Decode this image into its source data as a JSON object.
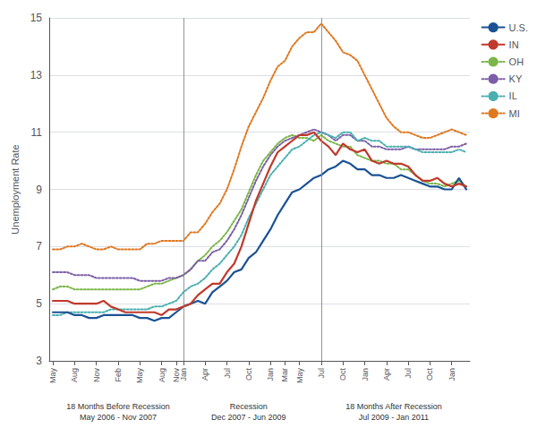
{
  "chart_data": {
    "type": "line",
    "ylabel": "Unemployment Rate",
    "ylim": [
      3,
      15
    ],
    "yticks": [
      3,
      5,
      7,
      9,
      11,
      13,
      15
    ],
    "grid": true,
    "legend": "right",
    "categories": [
      "May",
      null,
      null,
      "Aug",
      null,
      null,
      "Nov",
      null,
      null,
      "Feb",
      null,
      null,
      "May",
      null,
      null,
      "Aug",
      null,
      "Nov",
      "Jan",
      null,
      null,
      "Apr",
      null,
      null,
      "Jul",
      null,
      null,
      "Oct",
      null,
      null,
      "Jan",
      null,
      "Mar",
      null,
      "May",
      null,
      null,
      "Jul",
      null,
      null,
      "Oct",
      null,
      null,
      "Jan",
      null,
      null,
      "Apr",
      null,
      null,
      "Jul",
      null,
      null,
      "Oct",
      null,
      null,
      "Jan",
      null,
      null
    ],
    "series": [
      {
        "name": "U.S.",
        "color": "#1a5294",
        "line_style": "solid",
        "values": [
          4.7,
          4.7,
          4.7,
          4.6,
          4.6,
          4.5,
          4.5,
          4.6,
          4.6,
          4.6,
          4.6,
          4.6,
          4.5,
          4.5,
          4.4,
          4.5,
          4.5,
          4.7,
          4.9,
          5.0,
          5.1,
          5.0,
          5.4,
          5.6,
          5.8,
          6.1,
          6.2,
          6.6,
          6.8,
          7.2,
          7.6,
          8.1,
          8.5,
          8.9,
          9.0,
          9.2,
          9.4,
          9.5,
          9.7,
          9.8,
          10.0,
          9.9,
          9.7,
          9.7,
          9.5,
          9.5,
          9.4,
          9.4,
          9.5,
          9.4,
          9.3,
          9.2,
          9.1,
          9.1,
          9.0,
          9.0,
          9.4,
          9.0
        ]
      },
      {
        "name": "IN",
        "color": "#c0392b",
        "line_style": "solid",
        "values": [
          5.1,
          5.1,
          5.1,
          5.0,
          5.0,
          5.0,
          5.0,
          5.1,
          4.9,
          4.8,
          4.7,
          4.7,
          4.7,
          4.7,
          4.7,
          4.6,
          4.8,
          4.8,
          4.9,
          5.0,
          5.3,
          5.5,
          5.7,
          5.7,
          6.1,
          6.4,
          7.0,
          7.8,
          8.6,
          9.2,
          9.8,
          10.3,
          10.5,
          10.7,
          10.9,
          10.9,
          11.0,
          10.7,
          10.5,
          10.2,
          10.6,
          10.4,
          10.3,
          10.4,
          10.0,
          9.9,
          10.0,
          9.9,
          9.9,
          9.8,
          9.5,
          9.3,
          9.3,
          9.4,
          9.2,
          9.1,
          9.2,
          9.1
        ]
      },
      {
        "name": "OH",
        "color": "#7ab648",
        "line_style": "dotted",
        "values": [
          5.5,
          5.6,
          5.6,
          5.5,
          5.5,
          5.5,
          5.5,
          5.5,
          5.5,
          5.5,
          5.5,
          5.5,
          5.5,
          5.6,
          5.7,
          5.7,
          5.8,
          5.9,
          6.0,
          6.2,
          6.5,
          6.7,
          7.0,
          7.2,
          7.5,
          7.9,
          8.3,
          8.9,
          9.5,
          10.0,
          10.3,
          10.6,
          10.8,
          10.9,
          10.8,
          10.8,
          10.7,
          10.9,
          10.7,
          10.6,
          10.5,
          10.5,
          10.2,
          10.1,
          10.0,
          10.0,
          9.9,
          9.9,
          9.7,
          9.7,
          9.5,
          9.3,
          9.2,
          9.2,
          9.1,
          9.2,
          9.3,
          9.1
        ]
      },
      {
        "name": "KY",
        "color": "#7b5ea7",
        "line_style": "dotted",
        "values": [
          6.1,
          6.1,
          6.1,
          6.0,
          6.0,
          6.0,
          5.9,
          5.9,
          5.9,
          5.9,
          5.9,
          5.9,
          5.8,
          5.8,
          5.8,
          5.8,
          5.9,
          5.9,
          6.0,
          6.2,
          6.5,
          6.5,
          6.8,
          6.9,
          7.2,
          7.6,
          8.1,
          8.7,
          9.3,
          9.8,
          10.2,
          10.5,
          10.7,
          10.8,
          10.9,
          11.0,
          11.1,
          11.0,
          10.9,
          10.7,
          10.9,
          10.9,
          10.7,
          10.7,
          10.5,
          10.5,
          10.4,
          10.4,
          10.4,
          10.5,
          10.4,
          10.4,
          10.4,
          10.4,
          10.4,
          10.5,
          10.5,
          10.6
        ]
      },
      {
        "name": "IL",
        "color": "#4aafb0",
        "line_style": "dotted",
        "values": [
          4.6,
          4.6,
          4.7,
          4.7,
          4.7,
          4.7,
          4.7,
          4.7,
          4.8,
          4.8,
          4.8,
          4.8,
          4.8,
          4.8,
          4.9,
          4.9,
          5.0,
          5.1,
          5.4,
          5.6,
          5.7,
          5.9,
          6.2,
          6.4,
          6.7,
          7.0,
          7.4,
          8.0,
          8.5,
          9.0,
          9.5,
          9.8,
          10.1,
          10.4,
          10.5,
          10.7,
          10.9,
          11.0,
          10.9,
          10.8,
          11.0,
          11.0,
          10.7,
          10.8,
          10.7,
          10.7,
          10.5,
          10.5,
          10.5,
          10.5,
          10.4,
          10.3,
          10.3,
          10.3,
          10.3,
          10.3,
          10.4,
          10.3
        ]
      },
      {
        "name": "MI",
        "color": "#e07820",
        "line_style": "dotted",
        "values": [
          6.9,
          6.9,
          7.0,
          7.0,
          7.1,
          7.0,
          6.9,
          6.9,
          7.0,
          6.9,
          6.9,
          6.9,
          6.9,
          7.1,
          7.1,
          7.2,
          7.2,
          7.2,
          7.2,
          7.5,
          7.5,
          7.8,
          8.2,
          8.5,
          9.0,
          9.7,
          10.5,
          11.2,
          11.7,
          12.2,
          12.8,
          13.3,
          13.5,
          14.0,
          14.3,
          14.5,
          14.5,
          14.8,
          14.5,
          14.2,
          13.8,
          13.7,
          13.5,
          13.0,
          12.5,
          12.0,
          11.5,
          11.2,
          11.0,
          11.0,
          10.9,
          10.8,
          10.8,
          10.9,
          11.0,
          11.1,
          11.0,
          10.9
        ]
      }
    ],
    "annotations": [
      {
        "text": "18 Months Before Recession\nMay 2006 - Nov 2007",
        "x0": 0,
        "x1": 17
      },
      {
        "text": "Recession\nDec 2007 - Jun 2009",
        "x0": 18,
        "x1": 36
      },
      {
        "text": "18 Months After Recession\nJul 2009 - Jan 2011",
        "x0": 37,
        "x1": 57
      }
    ]
  }
}
